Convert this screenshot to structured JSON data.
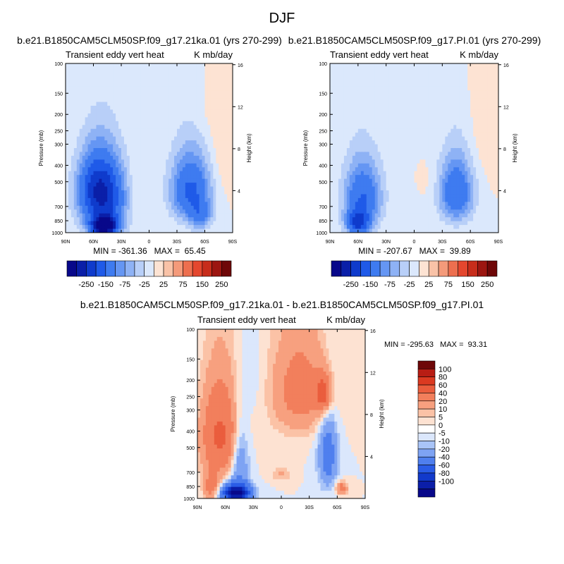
{
  "page_title": "DJF",
  "panels": [
    {
      "title": "b.e21.B1850CAM5CLM50SP.f09_g17.21ka.01 (yrs 270-299)",
      "left_label": "Transient eddy vert heat",
      "right_label": "K mb/day",
      "stats": "MIN = -361.36   MAX =  65.45",
      "colorbar": {
        "colors": [
          "#08088a",
          "#0a1fa8",
          "#0f3bcc",
          "#1f5ae8",
          "#3e7bf0",
          "#6596f3",
          "#8eb2f5",
          "#b8cff8",
          "#dbe8fc",
          "#fde3d3",
          "#f9c2a7",
          "#f49a7a",
          "#ed6f4f",
          "#e4472e",
          "#c72d1b",
          "#9c1611",
          "#6e0708"
        ],
        "labels": [
          "-250",
          "-150",
          "-75",
          "-25",
          "25",
          "75",
          "150",
          "250"
        ]
      },
      "chart_data": {
        "type": "heatmap",
        "title": "b.e21.B1850CAM5CLM50SP.f09_g17.21ka.01 (yrs 270-299)",
        "x_ticks": [
          "90N",
          "60N",
          "30N",
          "0",
          "30S",
          "60S",
          "90S"
        ],
        "y_ticks": [
          "100",
          "150",
          "200",
          "250",
          "300",
          "400",
          "500",
          "700",
          "850",
          "1000"
        ],
        "y2_ticks": [
          "4",
          "8",
          "12",
          "16"
        ],
        "ylabel": "Pressure (mb)",
        "y2label": "Height (km)",
        "xlim": [
          90,
          -90
        ],
        "ylim_mb": [
          1000,
          100
        ],
        "y_scale": "log",
        "min": -361.36,
        "max": 65.45,
        "features": [
          {
            "lat": 50,
            "p": 630,
            "lat_w": 24,
            "p_w": 300,
            "value": -220
          },
          {
            "lat": 48,
            "p": 920,
            "lat_w": 14,
            "p_w": 120,
            "value": -330
          },
          {
            "lat": 57,
            "p": 500,
            "lat_w": 20,
            "p_w": 200,
            "value": -80
          },
          {
            "lat": -45,
            "p": 560,
            "lat_w": 22,
            "p_w": 260,
            "value": -160
          },
          {
            "lat": -55,
            "p": 800,
            "lat_w": 12,
            "p_w": 150,
            "value": -80
          },
          {
            "lat": -80,
            "p": 350,
            "lat_w": 18,
            "p_w": 260,
            "value": 22
          },
          {
            "lat": 18,
            "p": 580,
            "lat_w": 8,
            "p_w": 200,
            "value": 12
          },
          {
            "lat": -60,
            "p": 200,
            "lat_w": 14,
            "p_w": 70,
            "value": 10
          }
        ]
      }
    },
    {
      "title": "b.e21.B1850CAM5CLM50SP.f09_g17.PI.01 (yrs 270-299)",
      "left_label": "Transient eddy vert heat",
      "right_label": "K mb/day",
      "stats": "MIN = -207.67   MAX =  39.89",
      "colorbar": {
        "colors": [
          "#08088a",
          "#0a1fa8",
          "#0f3bcc",
          "#1f5ae8",
          "#3e7bf0",
          "#6596f3",
          "#8eb2f5",
          "#b8cff8",
          "#dbe8fc",
          "#fde3d3",
          "#f9c2a7",
          "#f49a7a",
          "#ed6f4f",
          "#e4472e",
          "#c72d1b",
          "#9c1611",
          "#6e0708"
        ],
        "labels": [
          "-250",
          "-150",
          "-75",
          "-25",
          "25",
          "75",
          "150",
          "250"
        ]
      },
      "chart_data": {
        "type": "heatmap",
        "title": "b.e21.B1850CAM5CLM50SP.f09_g17.PI.01 (yrs 270-299)",
        "x_ticks": [
          "90N",
          "60N",
          "30N",
          "0",
          "30S",
          "60S",
          "90S"
        ],
        "y_ticks": [
          "100",
          "150",
          "200",
          "250",
          "300",
          "400",
          "500",
          "700",
          "850",
          "1000"
        ],
        "y2_ticks": [
          "4",
          "8",
          "12",
          "16"
        ],
        "ylabel": "Pressure (mb)",
        "y2label": "Height (km)",
        "xlim": [
          90,
          -90
        ],
        "ylim_mb": [
          1000,
          100
        ],
        "y_scale": "log",
        "min": -207.67,
        "max": 39.89,
        "features": [
          {
            "lat": 55,
            "p": 620,
            "lat_w": 20,
            "p_w": 280,
            "value": -150
          },
          {
            "lat": 60,
            "p": 880,
            "lat_w": 12,
            "p_w": 140,
            "value": -190
          },
          {
            "lat": -45,
            "p": 580,
            "lat_w": 18,
            "p_w": 260,
            "value": -150
          },
          {
            "lat": -80,
            "p": 250,
            "lat_w": 22,
            "p_w": 200,
            "value": 18
          },
          {
            "lat": -15,
            "p": 500,
            "lat_w": 8,
            "p_w": 120,
            "value": 8
          }
        ]
      }
    }
  ],
  "diff_panel": {
    "title": "b.e21.B1850CAM5CLM50SP.f09_g17.21ka.01 - b.e21.B1850CAM5CLM50SP.f09_g17.PI.01",
    "left_label": "Transient eddy vert heat",
    "right_label": "K mb/day",
    "stats": "MIN = -295.63   MAX =  93.31",
    "colorbar": {
      "colors": [
        "#6e0708",
        "#b81d14",
        "#db3a21",
        "#ea5d3d",
        "#f27f5c",
        "#f7a07f",
        "#fbc2a6",
        "#fde2d2",
        "#ffffff",
        "#dbe7fc",
        "#a9c4f7",
        "#7ea3f3",
        "#4f7fee",
        "#2a5ce6",
        "#123acb",
        "#0b1ea8",
        "#08088a"
      ],
      "labels": [
        "100",
        "80",
        "60",
        "40",
        "20",
        "10",
        "5",
        "0",
        "-5",
        "-10",
        "-20",
        "-40",
        "-60",
        "-80",
        "-100"
      ]
    },
    "chart_data": {
      "type": "heatmap",
      "title": "b.e21.B1850CAM5CLM50SP.f09_g17.21ka.01 - b.e21.B1850CAM5CLM50SP.f09_g17.PI.01",
      "x_ticks": [
        "90N",
        "60N",
        "30N",
        "0",
        "30S",
        "60S",
        "90S"
      ],
      "y_ticks": [
        "100",
        "150",
        "200",
        "250",
        "300",
        "400",
        "500",
        "700",
        "850",
        "1000"
      ],
      "y2_ticks": [
        "4",
        "8",
        "12",
        "16"
      ],
      "ylabel": "Pressure (mb)",
      "y2label": "Height (km)",
      "xlim": [
        90,
        -90
      ],
      "ylim_mb": [
        1000,
        100
      ],
      "y_scale": "log",
      "min": -295.63,
      "max": 93.31,
      "features": [
        {
          "lat": 65,
          "p": 430,
          "lat_w": 20,
          "p_w": 260,
          "value": 45
        },
        {
          "lat": 45,
          "p": 580,
          "lat_w": 10,
          "p_w": 300,
          "value": -25
        },
        {
          "lat": 48,
          "p": 930,
          "lat_w": 14,
          "p_w": 110,
          "value": -110
        },
        {
          "lat": 75,
          "p": 850,
          "lat_w": 8,
          "p_w": 150,
          "value": 30
        },
        {
          "lat": -20,
          "p": 230,
          "lat_w": 30,
          "p_w": 160,
          "value": 28
        },
        {
          "lat": -45,
          "p": 240,
          "lat_w": 8,
          "p_w": 60,
          "value": 45
        },
        {
          "lat": -50,
          "p": 550,
          "lat_w": 10,
          "p_w": 280,
          "value": -30
        },
        {
          "lat": 0,
          "p": 720,
          "lat_w": 10,
          "p_w": 60,
          "value": 12
        },
        {
          "lat": 30,
          "p": 200,
          "lat_w": 12,
          "p_w": 120,
          "value": -4
        },
        {
          "lat": -65,
          "p": 870,
          "lat_w": 6,
          "p_w": 70,
          "value": 30
        }
      ]
    }
  }
}
